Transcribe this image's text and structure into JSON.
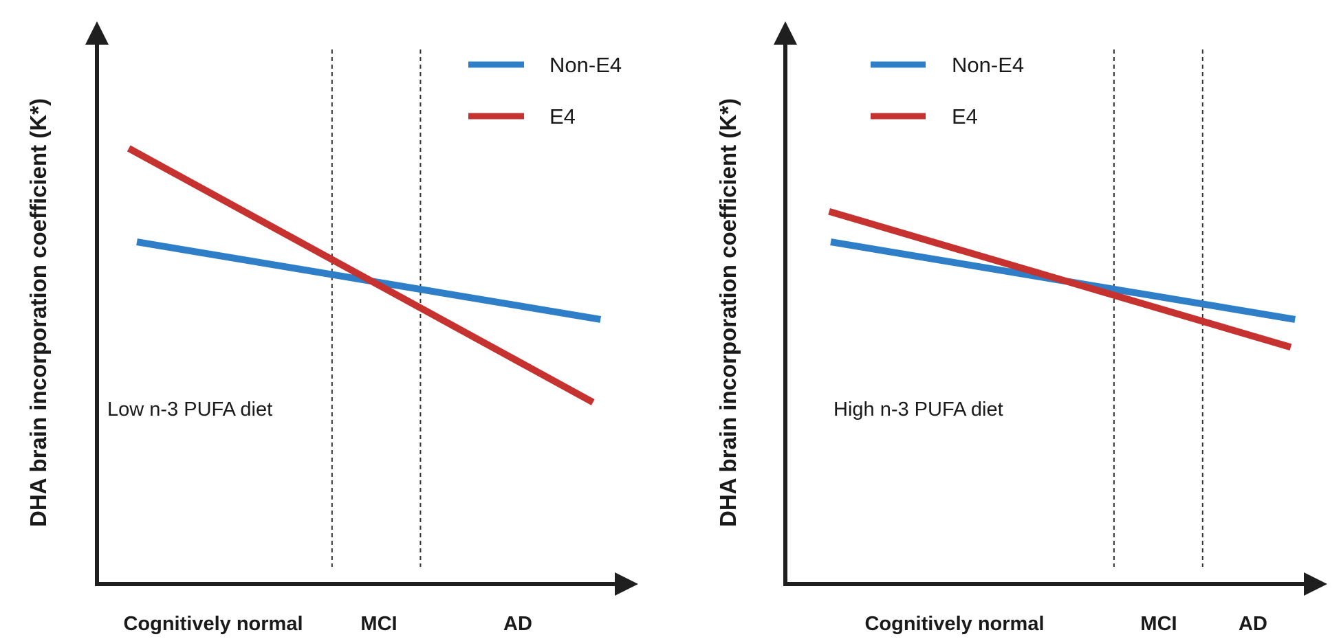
{
  "colors": {
    "non_e4": "#2f7fc8",
    "e4": "#c6322f",
    "axis": "#1f1f1f"
  },
  "chart_data": [
    {
      "type": "line",
      "panel_label": "Low n-3 PUFA diet",
      "ylabel": "DHA brain incorporation coefficient (K*)",
      "xlabel_regions": [
        "Cognitively normal",
        "MCI",
        "AD"
      ],
      "legend": [
        "Non-E4",
        "E4"
      ],
      "legend_placement": "top-right",
      "xlim": [
        0,
        100
      ],
      "ylim": [
        0,
        100
      ],
      "region_dividers_x": [
        43.6,
        60.0
      ],
      "series": [
        {
          "name": "Non-E4",
          "x": [
            7.4,
            93.4
          ],
          "y": [
            64.0,
            49.5
          ]
        },
        {
          "name": "E4",
          "x": [
            5.9,
            92.0
          ],
          "y": [
            81.5,
            34.0
          ]
        }
      ]
    },
    {
      "type": "line",
      "panel_label": "High n-3 PUFA diet",
      "ylabel": "DHA brain incorporation coefficient (K*)",
      "xlabel_regions": [
        "Cognitively normal",
        "MCI",
        "AD"
      ],
      "legend": [
        "Non-E4",
        "E4"
      ],
      "legend_placement": "top-left",
      "xlim": [
        0,
        100
      ],
      "ylim": [
        0,
        100
      ],
      "region_dividers_x": [
        60.8,
        77.2
      ],
      "series": [
        {
          "name": "Non-E4",
          "x": [
            8.4,
            94.3
          ],
          "y": [
            64.0,
            49.5
          ]
        },
        {
          "name": "E4",
          "x": [
            8.1,
            93.5
          ],
          "y": [
            69.7,
            44.3
          ]
        }
      ]
    }
  ]
}
